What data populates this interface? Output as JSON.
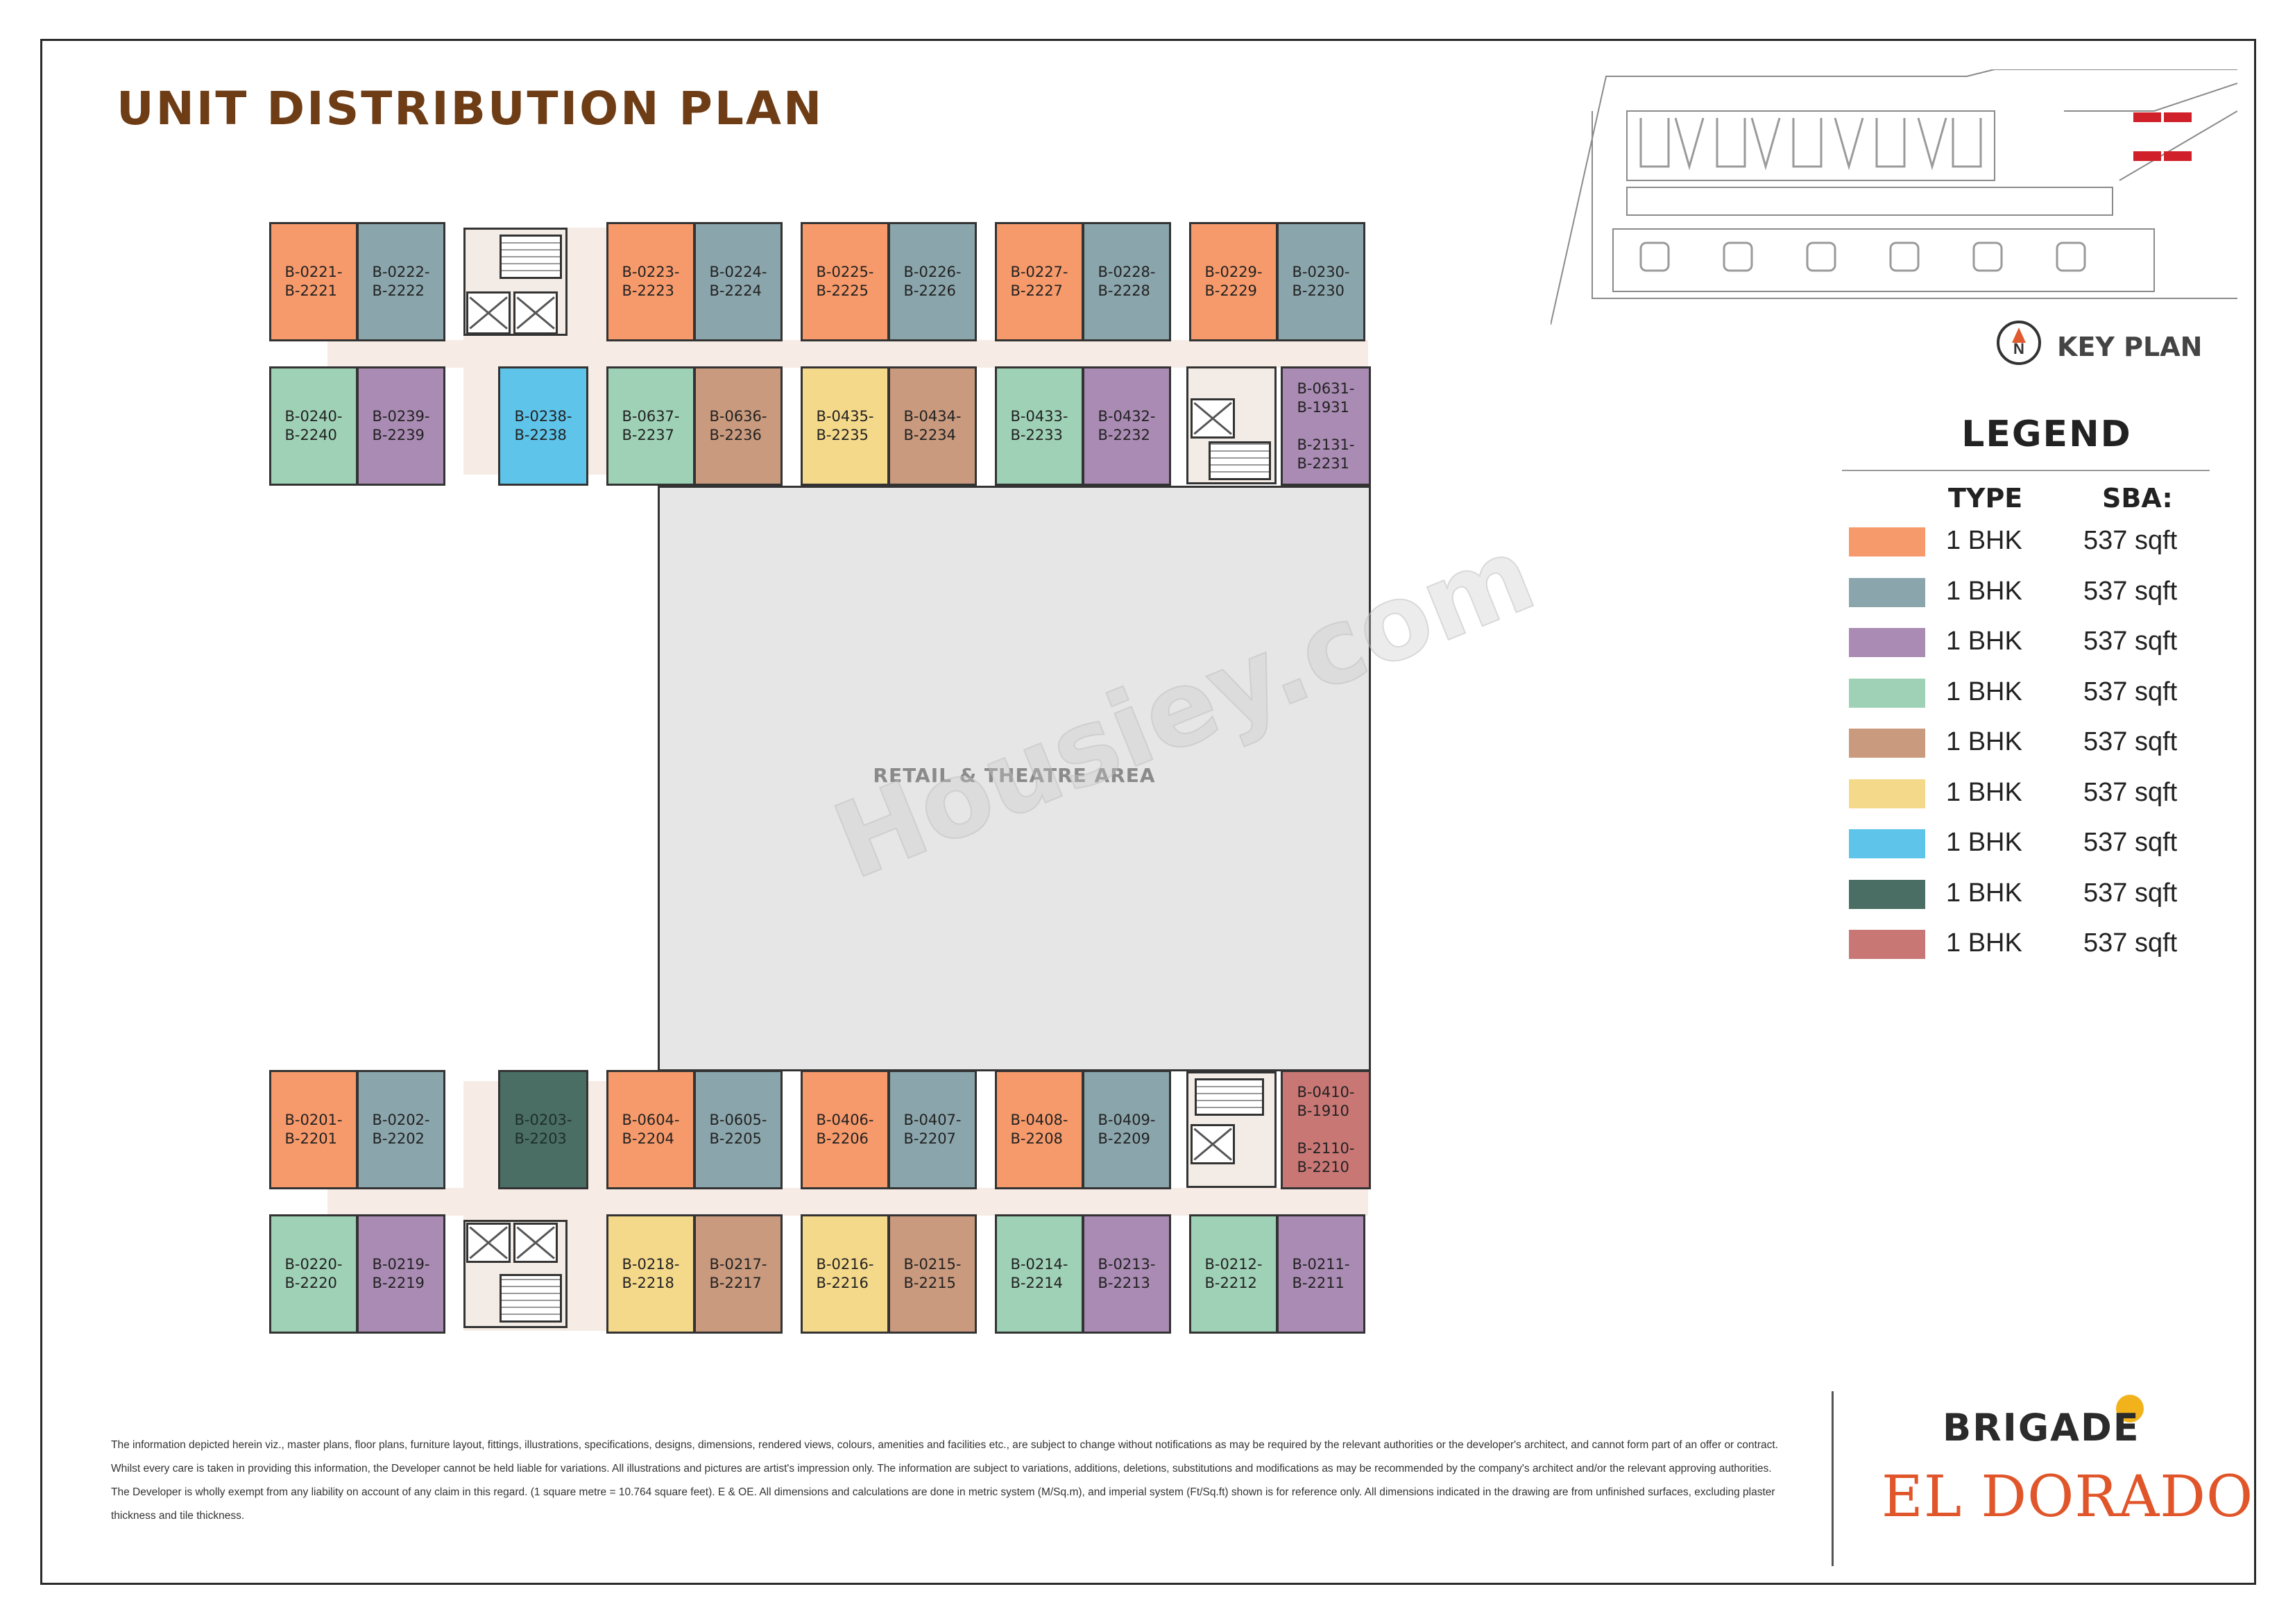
{
  "title": "UNIT DISTRIBUTION PLAN",
  "retail_label": "RETAIL & THEATRE  AREA",
  "watermark": "Housiey.com",
  "key_plan": {
    "label": "KEY PLAN",
    "north_symbol": "N",
    "icon": "north-arrow-icon"
  },
  "colors": {
    "orange": "#f79a6b",
    "bluegray": "#8aa5ab",
    "purple": "#a98bb3",
    "mint": "#9fd1b6",
    "tan": "#c99a7e",
    "yellow": "#f5d98b",
    "skyblue": "#5fc4ea",
    "darkgreen": "#4a6e63",
    "rose": "#c97775"
  },
  "legend": {
    "title": "LEGEND",
    "type_header": "TYPE",
    "sba_header": "SBA:",
    "rows": [
      {
        "color": "#f79a6b",
        "type": "1 BHK",
        "sba": "537 sqft"
      },
      {
        "color": "#8aa5ab",
        "type": "1 BHK",
        "sba": "537 sqft"
      },
      {
        "color": "#a98bb3",
        "type": "1 BHK",
        "sba": "537 sqft"
      },
      {
        "color": "#9fd1b6",
        "type": "1 BHK",
        "sba": "537 sqft"
      },
      {
        "color": "#c99a7e",
        "type": "1 BHK",
        "sba": "537 sqft"
      },
      {
        "color": "#f5d98b",
        "type": "1 BHK",
        "sba": "537 sqft"
      },
      {
        "color": "#5fc4ea",
        "type": "1 BHK",
        "sba": "537 sqft"
      },
      {
        "color": "#4a6e63",
        "type": "1 BHK",
        "sba": "537 sqft"
      },
      {
        "color": "#c97775",
        "type": "1 BHK",
        "sba": "537 sqft"
      }
    ]
  },
  "units": {
    "u0221": "B-0221-\nB-2221",
    "u0222": "B-0222-\nB-2222",
    "u0223": "B-0223-\nB-2223",
    "u0224": "B-0224-\nB-2224",
    "u0225": "B-0225-\nB-2225",
    "u0226": "B-0226-\nB-2226",
    "u0227": "B-0227-\nB-2227",
    "u0228": "B-0228-\nB-2228",
    "u0229": "B-0229-\nB-2229",
    "u0230": "B-0230-\nB-2230",
    "u0240": "B-0240-\nB-2240",
    "u0239": "B-0239-\nB-2239",
    "u0238": "B-0238-\nB-2238",
    "u0637": "B-0637-\nB-2237",
    "u0636": "B-0636-\nB-2236",
    "u0435": "B-0435-\nB-2235",
    "u0434": "B-0434-\nB-2234",
    "u0433": "B-0433-\nB-2233",
    "u0432": "B-0432-\nB-2232",
    "u0631": "B-0631-\nB-1931\n\nB-2131-\nB-2231",
    "u0201": "B-0201-\nB-2201",
    "u0202": "B-0202-\nB-2202",
    "u0203": "B-0203-\nB-2203",
    "u0604": "B-0604-\nB-2204",
    "u0605": "B-0605-\nB-2205",
    "u0406": "B-0406-\nB-2206",
    "u0407": "B-0407-\nB-2207",
    "u0408": "B-0408-\nB-2208",
    "u0409": "B-0409-\nB-2209",
    "u0410": "B-0410-\nB-1910\n\nB-2110-\nB-2210",
    "u0220": "B-0220-\nB-2220",
    "u0219": "B-0219-\nB-2219",
    "u0218": "B-0218-\nB-2218",
    "u0217": "B-0217-\nB-2217",
    "u0216": "B-0216-\nB-2216",
    "u0215": "B-0215-\nB-2215",
    "u0214": "B-0214-\nB-2214",
    "u0213": "B-0213-\nB-2213",
    "u0212": "B-0212-\nB-2212",
    "u0211": "B-0211-\nB-2211"
  },
  "disclaimer": "The information depicted herein viz., master plans, floor plans, furniture layout, fittings, illustrations, specifications, designs, dimensions, rendered views, colours, amenities and facilities etc., are subject to change without notifications as may be required by the relevant authorities or the developer's architect, and cannot form part of an offer or contract. Whilst every care is taken in providing this information, the Developer cannot be held liable for variations. All illustrations and pictures are artist's impression only. The information are subject to variations, additions, deletions, substitutions and modifications as may be recommended by the company's architect and/or the relevant approving authorities. The Developer is wholly exempt from any liability on account of any claim in this regard. (1 square metre = 10.764 square feet). E & OE.  All dimensions and calculations are done in metric system (M/Sq.m), and imperial system (Ft/Sq.ft) shown is for reference only. All dimensions indicated in the drawing are from unfinished surfaces, excluding plaster thickness and tile thickness.",
  "brand": {
    "name": "BRIGADE",
    "project": "EL DORADO"
  }
}
